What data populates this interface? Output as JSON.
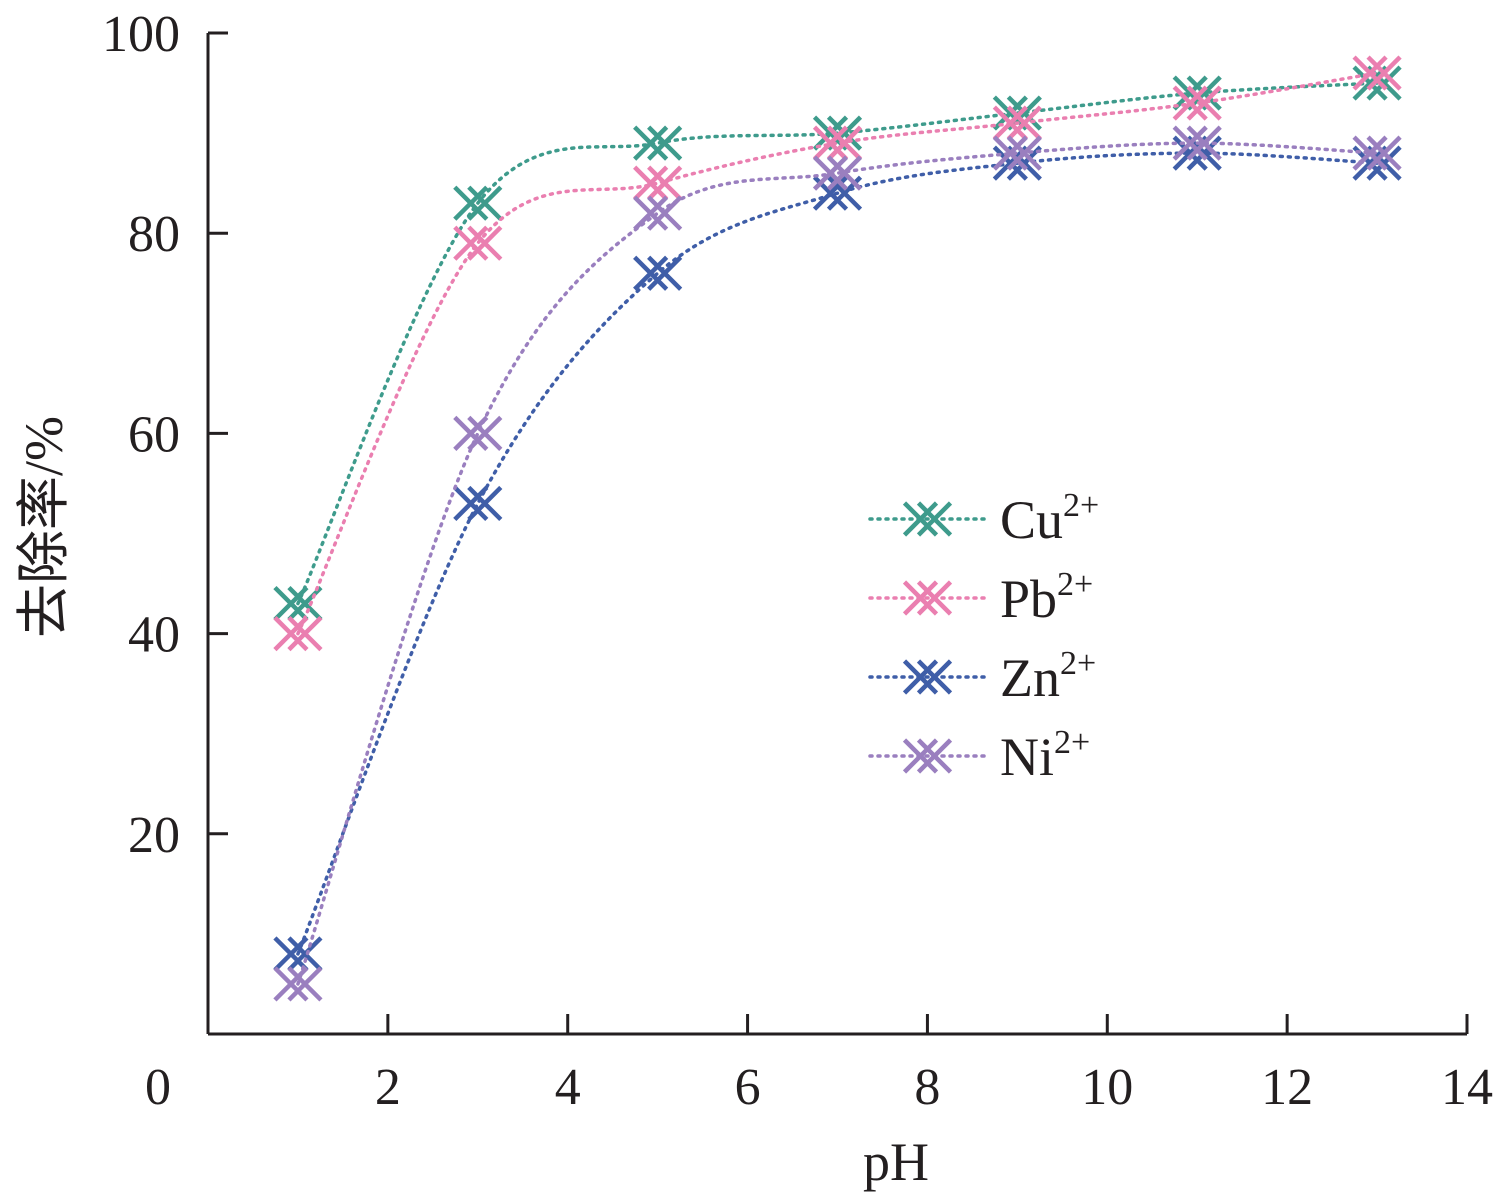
{
  "chart_data": {
    "type": "line",
    "title": "",
    "xlabel": "pH",
    "ylabel": "去除率/%",
    "xlim": [
      0,
      14
    ],
    "ylim": [
      0,
      100
    ],
    "xticks": [
      0,
      2,
      4,
      6,
      8,
      10,
      12,
      14
    ],
    "yticks": [
      20,
      40,
      60,
      80,
      100
    ],
    "x": [
      1,
      3,
      5,
      7,
      9,
      11,
      13
    ],
    "grid": false,
    "legend_position": "right",
    "line_style": "dotted",
    "marker": "double-x",
    "series": [
      {
        "name": "Cu",
        "superscript": "2+",
        "color": "#3e9b8c",
        "values": [
          43,
          83,
          89,
          90,
          92,
          94,
          95
        ]
      },
      {
        "name": "Pb",
        "superscript": "2+",
        "color": "#ea7fb0",
        "values": [
          40,
          79,
          85,
          89,
          91,
          93,
          96
        ]
      },
      {
        "name": "Zn",
        "superscript": "2+",
        "color": "#3f5ea8",
        "values": [
          8,
          53,
          76,
          84,
          87,
          88,
          87
        ]
      },
      {
        "name": "Ni",
        "superscript": "2+",
        "color": "#9a7fbf",
        "values": [
          5,
          60,
          82,
          86,
          88,
          89,
          88
        ]
      }
    ]
  }
}
